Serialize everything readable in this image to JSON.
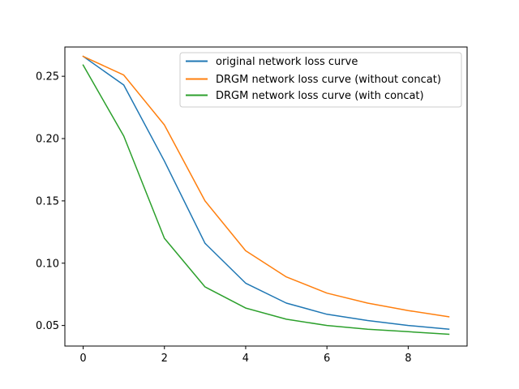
{
  "chart_data": {
    "type": "line",
    "title": "",
    "xlabel": "",
    "ylabel": "",
    "xlim": [
      -0.45,
      9.45
    ],
    "ylim": [
      0.0335,
      0.2735
    ],
    "x_ticks": [
      0,
      2,
      4,
      6,
      8
    ],
    "x_tick_labels": [
      "0",
      "2",
      "4",
      "6",
      "8"
    ],
    "y_ticks": [
      0.05,
      0.1,
      0.15,
      0.2,
      0.25
    ],
    "y_tick_labels": [
      "0.05",
      "0.10",
      "0.15",
      "0.20",
      "0.25"
    ],
    "grid": false,
    "legend_position": "top-right",
    "x": [
      0,
      1,
      2,
      3,
      4,
      5,
      6,
      7,
      8,
      9
    ],
    "series": [
      {
        "name": "original network loss curve",
        "color": "#1f77b4",
        "values": [
          0.266,
          0.243,
          0.182,
          0.116,
          0.084,
          0.068,
          0.059,
          0.054,
          0.05,
          0.047
        ]
      },
      {
        "name": "DRGM network loss curve (without concat)",
        "color": "#ff7f0e",
        "values": [
          0.266,
          0.251,
          0.211,
          0.15,
          0.11,
          0.089,
          0.076,
          0.068,
          0.062,
          0.057
        ]
      },
      {
        "name": "DRGM network loss curve (with concat)",
        "color": "#2ca02c",
        "values": [
          0.259,
          0.202,
          0.12,
          0.081,
          0.064,
          0.055,
          0.05,
          0.047,
          0.045,
          0.043
        ]
      }
    ]
  }
}
